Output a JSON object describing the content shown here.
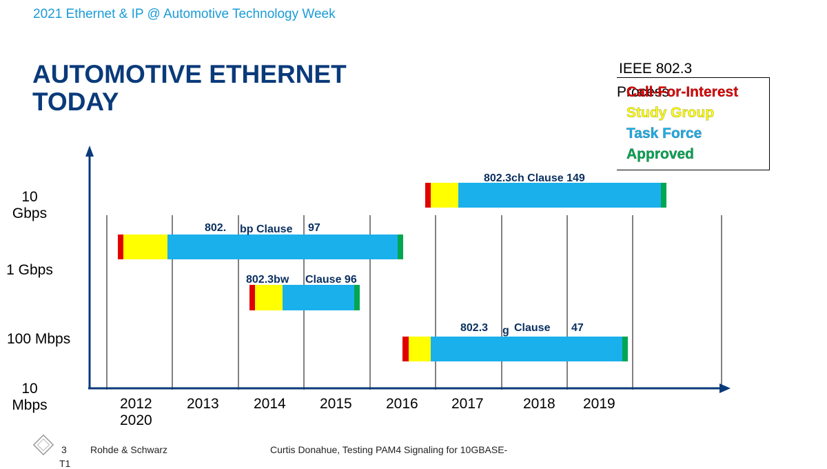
{
  "header": {
    "event": "2021 Ethernet & IP @ Automotive Technology Week"
  },
  "title": "AUTOMOTIVE ETHERNET TODAY",
  "legend": {
    "title": "IEEE 802.3",
    "process": "Process",
    "items": [
      {
        "label": "Call-For-Interest",
        "color": "#e00000"
      },
      {
        "label": "Study Group",
        "color": "#ffff00"
      },
      {
        "label": "Task Force",
        "color": "#1ab0ec"
      },
      {
        "label": "Approved",
        "color": "#00a651"
      }
    ]
  },
  "y_labels": [
    "10 Gbps",
    "1 Gbps",
    "100 Mbps",
    "10 Mbps"
  ],
  "years": [
    "2012",
    "2013",
    "2014",
    "2015",
    "2016",
    "2017",
    "2018",
    "2019",
    "2020"
  ],
  "standards": [
    {
      "id": "ch",
      "label_a": "802.3ch Clause 149",
      "label_b": "",
      "label_c": ""
    },
    {
      "id": "bp",
      "label_a": "802.",
      "label_b": "bp Clause",
      "label_c": "97"
    },
    {
      "id": "bw",
      "label_a": "802.3bw",
      "label_b": "Clause 96",
      "label_c": ""
    },
    {
      "id": "bq",
      "label_a": "802.3",
      "label_b": "g",
      "label_c": "Clause",
      "label_d": "47"
    }
  ],
  "footer": {
    "page": "3",
    "page_sub": "T1",
    "company": "Rohde & Schwarz",
    "presenter": "Curtis Donahue, Testing PAM4 Signaling for 10GBASE-"
  }
}
